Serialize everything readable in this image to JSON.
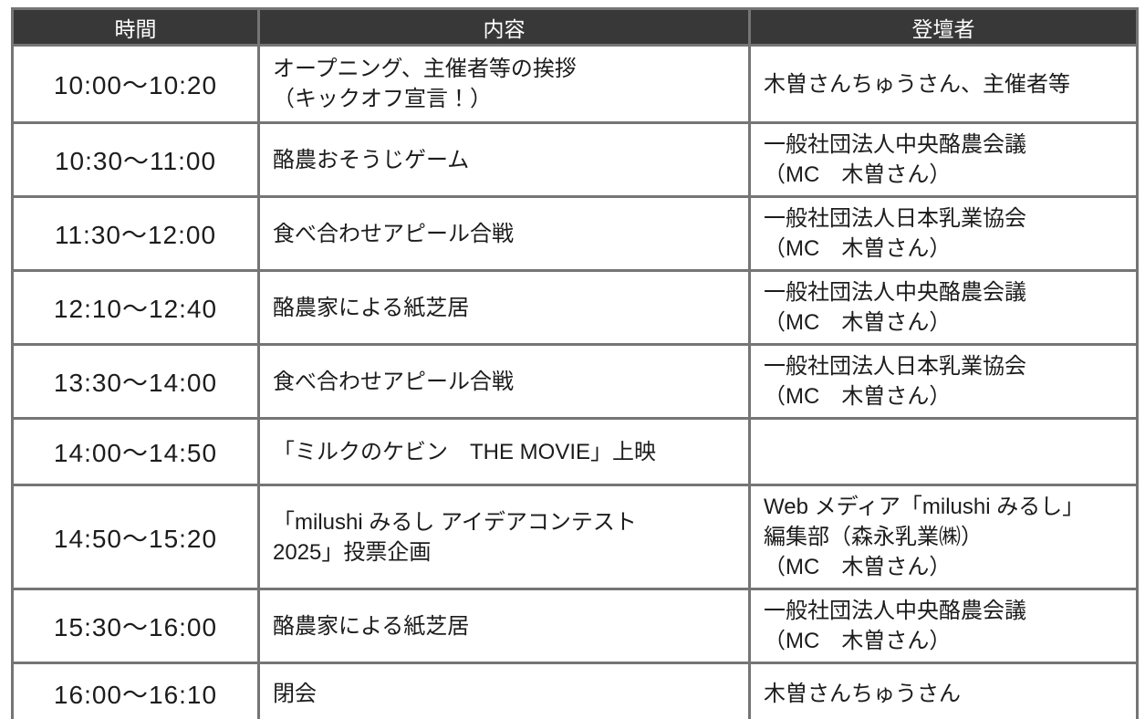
{
  "table": {
    "headers": {
      "time": "時間",
      "content": "内容",
      "speaker": "登壇者"
    },
    "rows": [
      {
        "time": "10:00～10:20",
        "content": "オープニング、主催者等の挨拶\n（キックオフ宣言！）",
        "speaker": "木曽さんちゅうさん、主催者等"
      },
      {
        "time": "10:30～11:00",
        "content": "酪農おそうじゲーム",
        "speaker": "一般社団法人中央酪農会議\n（MC　木曽さん）"
      },
      {
        "time": "11:30～12:00",
        "content": "食べ合わせアピール合戦",
        "speaker": "一般社団法人日本乳業協会\n（MC　木曽さん）"
      },
      {
        "time": "12:10～12:40",
        "content": "酪農家による紙芝居",
        "speaker": "一般社団法人中央酪農会議\n（MC　木曽さん）"
      },
      {
        "time": "13:30～14:00",
        "content": "食べ合わせアピール合戦",
        "speaker": "一般社団法人日本乳業協会\n（MC　木曽さん）"
      },
      {
        "time": "14:00～14:50",
        "content": "「ミルクのケビン　THE MOVIE」上映",
        "speaker": ""
      },
      {
        "time": "14:50～15:20",
        "content": "「milushi みるし アイデアコンテスト\n2025」投票企画",
        "speaker": "Web メディア「milushi みるし」\n編集部（森永乳業㈱）\n（MC　木曽さん）"
      },
      {
        "time": "15:30～16:00",
        "content": "酪農家による紙芝居",
        "speaker": "一般社団法人中央酪農会議\n（MC　木曽さん）"
      },
      {
        "time": "16:00～16:10",
        "content": "閉会",
        "speaker": "木曽さんちゅうさん"
      }
    ],
    "colors": {
      "header_bg": "#383838",
      "header_text": "#ffffff",
      "border": "#757575",
      "body_text": "#1c1c1c",
      "body_bg": "#ffffff"
    }
  }
}
